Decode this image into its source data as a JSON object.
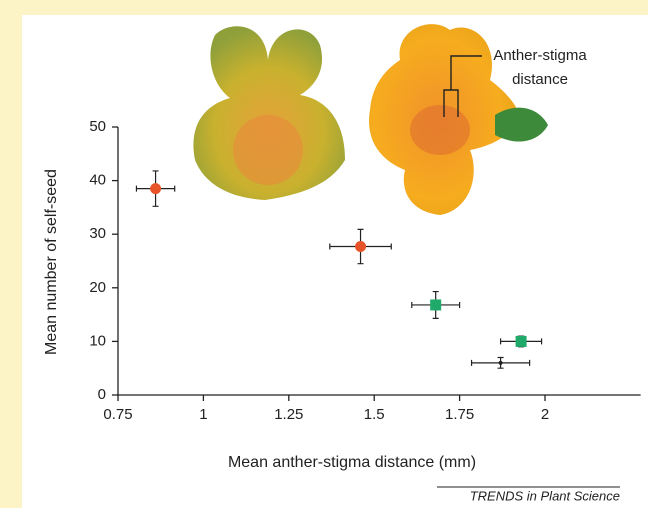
{
  "chart_data": {
    "type": "scatter",
    "x_label": "Mean anther-stigma distance (mm)",
    "y_label": "Mean number of self-seed",
    "annotation": [
      "Anther-stigma",
      "distance"
    ],
    "source": "TRENDS in Plant Science",
    "xlim": [
      0.75,
      2.28
    ],
    "xticks": [
      0.75,
      1,
      1.25,
      1.5,
      1.75,
      2
    ],
    "ylim": [
      0,
      50
    ],
    "yticks": [
      0,
      10,
      20,
      30,
      40,
      50
    ],
    "series": [
      {
        "color": "#e8542a",
        "marker": "circle",
        "x": [
          0.86,
          1.46
        ],
        "values": [
          38.5,
          27.7
        ],
        "xerr": [
          0.056,
          0.09
        ],
        "yerr": [
          3.3,
          3.2
        ]
      },
      {
        "color": "#1faa6a",
        "marker": "square",
        "x": [
          1.68,
          1.93
        ],
        "values": [
          16.8,
          10
        ],
        "xerr": [
          0.07,
          0.06
        ],
        "yerr": [
          2.5,
          1
        ]
      },
      {
        "color": "#222222",
        "marker": "dot",
        "x": [
          1.87
        ],
        "values": [
          6
        ],
        "xerr": [
          0.085
        ],
        "yerr": [
          1
        ]
      }
    ]
  }
}
